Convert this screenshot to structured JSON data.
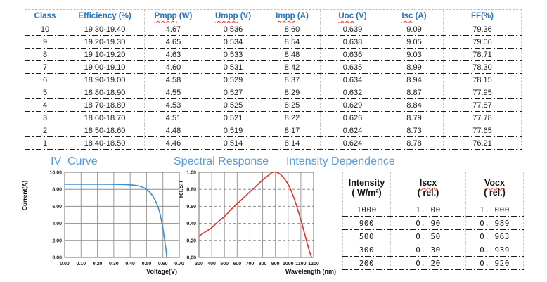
{
  "sections": {
    "iv_title": "IV  Curve",
    "spectral_title": "Spectral Response",
    "intensity_title": "Intensity Dependence"
  },
  "colors": {
    "header_blue": "#2E75B6",
    "title_blue": "#5B9BD5",
    "iv_curve_blue": "#3E8FD0",
    "spectral_red": "#E03432",
    "squiggle_red": "#E23B2E"
  },
  "main_table": {
    "headers": [
      {
        "wavy": "",
        "rest": "Class"
      },
      {
        "wavy": "",
        "rest": "Efficiency (%)"
      },
      {
        "wavy": "Pmpp",
        "rest": " (W)"
      },
      {
        "wavy": "Umpp",
        "rest": " (V)"
      },
      {
        "wavy": "Impp",
        "rest": " (A)"
      },
      {
        "wavy": "Uoc",
        "rest": " (V)"
      },
      {
        "wavy": "Isc",
        "rest": " (A)"
      },
      {
        "wavy": "",
        "rest": "FF(%)"
      }
    ],
    "rows": [
      [
        "10",
        "19.30-19.40",
        "4.67",
        "0.536",
        "8.60",
        "0.639",
        "9.09",
        "79.36"
      ],
      [
        "9",
        "19.20-19.30",
        "4.65",
        "0.534",
        "8.54",
        "0.638",
        "9.05",
        "79.06"
      ],
      [
        "8",
        "19.10-19.20",
        "4.63",
        "0.533",
        "8.48",
        "0.636",
        "9.03",
        "78.71"
      ],
      [
        "7",
        "19.00-19.10",
        "4.60",
        "0.531",
        "8.42",
        "0.635",
        "8.99",
        "78.30"
      ],
      [
        "6",
        "18.90-19.00",
        "4.58",
        "0.529",
        "8.37",
        "0.634",
        "8.94",
        "78.15"
      ],
      [
        "5",
        "18.80-18.90",
        "4.55",
        "0.527",
        "8.29",
        "0.632",
        "8.87",
        "77.95"
      ],
      [
        "4",
        "18.70-18.80",
        "4.53",
        "0.525",
        "8.25",
        "0.629",
        "8.84",
        "77.87"
      ],
      [
        "3",
        "18.60-18.70",
        "4.51",
        "0.521",
        "8.22",
        "0.626",
        "8.79",
        "77.78"
      ],
      [
        "2",
        "18.50-18.60",
        "4.48",
        "0.519",
        "8.17",
        "0.624",
        "8.73",
        "77.65"
      ],
      [
        "1",
        "18.40-18.50",
        "4.46",
        "0.514",
        "8.14",
        "0.624",
        "8.78",
        "76.21"
      ]
    ]
  },
  "intensity_table": {
    "headers": [
      {
        "wavy": "",
        "lines": [
          "Intensity",
          "( W/m²)"
        ]
      },
      {
        "wavy": "Iscx",
        "rest": "( rel.)"
      },
      {
        "wavy": "Vocx",
        "rest": "( rel.)"
      }
    ],
    "rows": [
      [
        "1000",
        "1. 00",
        "1. 000"
      ],
      [
        "900",
        "0. 90",
        "0. 989"
      ],
      [
        "500",
        "0. 50",
        "0. 963"
      ],
      [
        "300",
        "0. 30",
        "0. 939"
      ],
      [
        "200",
        "0. 20",
        "0. 920"
      ]
    ]
  },
  "chart_data": [
    {
      "id": "iv-chart",
      "type": "line",
      "title": "IV Curve",
      "xlabel": "Voltage(V)",
      "ylabel": "Current(A)",
      "xlim": [
        0,
        0.7
      ],
      "ylim": [
        0,
        10
      ],
      "grid": "solid",
      "legend": "none",
      "color": "#3E8FD0",
      "xticks": [
        {
          "v": 0.0,
          "l": "0.00"
        },
        {
          "v": 0.1,
          "l": "0.10"
        },
        {
          "v": 0.2,
          "l": "0.20"
        },
        {
          "v": 0.3,
          "l": "0.30"
        },
        {
          "v": 0.4,
          "l": "0.40"
        },
        {
          "v": 0.5,
          "l": "0.50"
        },
        {
          "v": 0.6,
          "l": "0.60"
        },
        {
          "v": 0.7,
          "l": "0.70"
        }
      ],
      "yticks": [
        {
          "v": 0,
          "l": "0,00"
        },
        {
          "v": 2,
          "l": "2.00"
        },
        {
          "v": 4,
          "l": "4.00"
        },
        {
          "v": 6,
          "l": "6.00"
        },
        {
          "v": 8,
          "l": "8.00"
        },
        {
          "v": 10,
          "l": "10.00"
        }
      ],
      "points": [
        [
          0,
          8.6
        ],
        [
          0.1,
          8.6
        ],
        [
          0.2,
          8.6
        ],
        [
          0.3,
          8.59
        ],
        [
          0.35,
          8.57
        ],
        [
          0.4,
          8.53
        ],
        [
          0.44,
          8.45
        ],
        [
          0.47,
          8.3
        ],
        [
          0.5,
          8.0
        ],
        [
          0.52,
          7.65
        ],
        [
          0.54,
          7.15
        ],
        [
          0.56,
          6.4
        ],
        [
          0.58,
          5.3
        ],
        [
          0.6,
          3.4
        ],
        [
          0.61,
          2.1
        ],
        [
          0.62,
          0.7
        ],
        [
          0.623,
          0
        ]
      ]
    },
    {
      "id": "sp-chart",
      "type": "line",
      "title": "Spectral Response",
      "xlabel": "Wavelength (nm)",
      "ylabel": "rel.SR",
      "xlim": [
        300,
        1200
      ],
      "ylim": [
        0,
        1
      ],
      "grid": "h-dashed",
      "legend": "none",
      "color": "#E03432",
      "xticks": [
        {
          "v": 300,
          "l": "300"
        },
        {
          "v": 400,
          "l": "400"
        },
        {
          "v": 500,
          "l": "500"
        },
        {
          "v": 600,
          "l": "600"
        },
        {
          "v": 700,
          "l": "700"
        },
        {
          "v": 800,
          "l": "800"
        },
        {
          "v": 900,
          "l": "900"
        },
        {
          "v": 1000,
          "l": "1000"
        },
        {
          "v": 1100,
          "l": "1100"
        },
        {
          "v": 1200,
          "l": "1200"
        }
      ],
      "yticks": [
        {
          "v": 0.0,
          "l": "0,00"
        },
        {
          "v": 0.2,
          "l": "0.20"
        },
        {
          "v": 0.4,
          "l": "0.40"
        },
        {
          "v": 0.6,
          "l": "0.60"
        },
        {
          "v": 0.8,
          "l": "0.80"
        },
        {
          "v": 1.0,
          "l": "1.00"
        }
      ],
      "points": [
        [
          300,
          0.25
        ],
        [
          350,
          0.3
        ],
        [
          400,
          0.35
        ],
        [
          450,
          0.42
        ],
        [
          500,
          0.48
        ],
        [
          550,
          0.56
        ],
        [
          600,
          0.63
        ],
        [
          650,
          0.7
        ],
        [
          700,
          0.77
        ],
        [
          750,
          0.84
        ],
        [
          800,
          0.91
        ],
        [
          850,
          0.97
        ],
        [
          880,
          1.0
        ],
        [
          910,
          1.0
        ],
        [
          950,
          0.96
        ],
        [
          1000,
          0.86
        ],
        [
          1050,
          0.68
        ],
        [
          1100,
          0.44
        ],
        [
          1140,
          0.22
        ],
        [
          1170,
          0.06
        ],
        [
          1185,
          0.0
        ]
      ]
    }
  ]
}
